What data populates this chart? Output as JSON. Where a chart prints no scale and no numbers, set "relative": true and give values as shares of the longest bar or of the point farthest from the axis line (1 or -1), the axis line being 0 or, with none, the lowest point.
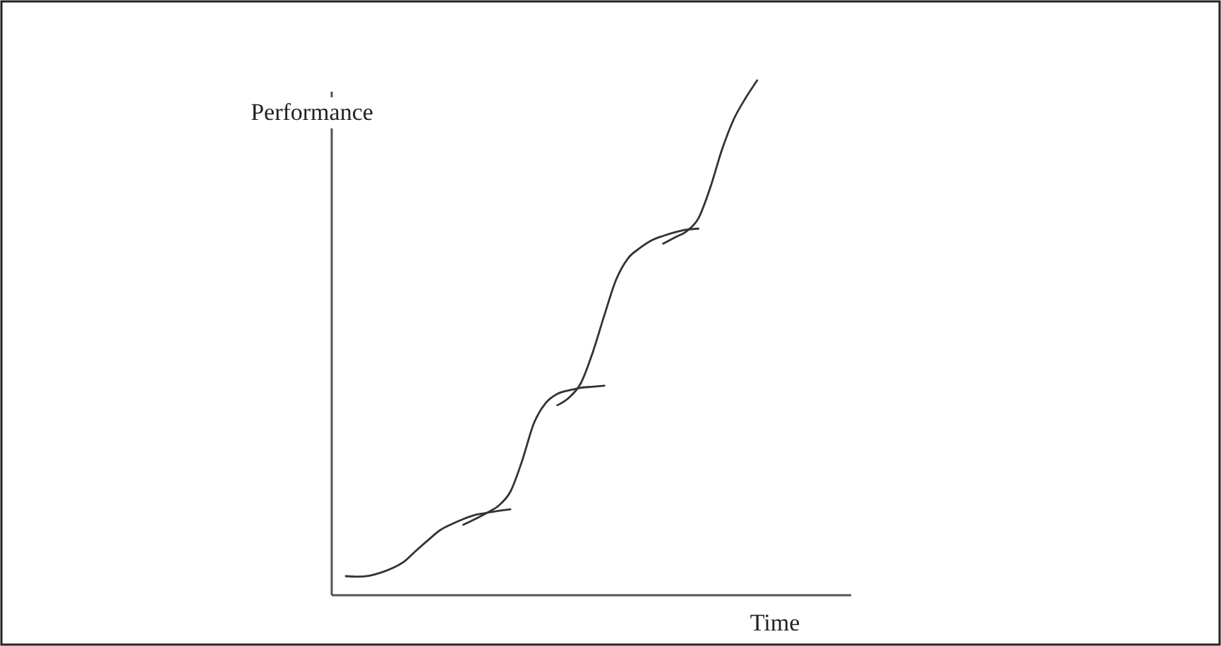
{
  "chart_data": {
    "type": "line",
    "relative": true,
    "xlabel": "Time",
    "ylabel": "Performance",
    "categories": [
      null,
      null,
      null,
      null,
      null,
      null,
      null,
      null,
      null,
      null,
      null,
      null,
      null,
      null,
      null,
      null,
      null,
      null,
      null,
      null,
      null,
      null,
      null,
      null,
      null,
      null,
      null,
      null,
      null,
      null,
      null,
      null,
      null,
      null,
      null,
      null,
      null,
      null,
      null,
      null,
      null,
      null,
      null,
      null
    ],
    "series": [
      {
        "color": "#333333",
        "values": [
          0.037,
          0.036,
          0.038,
          0.044,
          0.053,
          0.066,
          0.087,
          0.107,
          0.126,
          0.138,
          0.148,
          0.156,
          0.16,
          0.164,
          0.167,
          null,
          null,
          null,
          null,
          null,
          null,
          null,
          null,
          null,
          null,
          null,
          null,
          null,
          null,
          null,
          null,
          null,
          null,
          null,
          null,
          null,
          null,
          null,
          null,
          null,
          null,
          null,
          null,
          null
        ]
      },
      {
        "color": "#333333",
        "values": [
          null,
          null,
          null,
          null,
          null,
          null,
          null,
          null,
          null,
          null,
          0.137,
          0.148,
          0.16,
          0.174,
          0.201,
          0.261,
          0.334,
          0.373,
          0.391,
          0.398,
          0.403,
          0.405,
          0.407,
          null,
          null,
          null,
          null,
          null,
          null,
          null,
          null,
          null,
          null,
          null,
          null,
          null,
          null,
          null,
          null,
          null,
          null,
          null,
          null,
          null
        ]
      },
      {
        "color": "#333333",
        "values": [
          null,
          null,
          null,
          null,
          null,
          null,
          null,
          null,
          null,
          null,
          null,
          null,
          null,
          null,
          null,
          null,
          null,
          null,
          0.369,
          0.384,
          0.412,
          0.471,
          0.544,
          0.613,
          0.654,
          0.674,
          0.689,
          0.698,
          0.705,
          0.71,
          0.712,
          null,
          null,
          null,
          null,
          null,
          null,
          null,
          null,
          null,
          null,
          null,
          null,
          null
        ]
      },
      {
        "color": "#333333",
        "values": [
          null,
          null,
          null,
          null,
          null,
          null,
          null,
          null,
          null,
          null,
          null,
          null,
          null,
          null,
          null,
          null,
          null,
          null,
          null,
          null,
          null,
          null,
          null,
          null,
          null,
          null,
          null,
          0.683,
          0.695,
          0.707,
          0.732,
          0.791,
          0.865,
          0.924,
          0.965,
          1,
          null,
          null,
          null,
          null,
          null,
          null,
          null,
          null
        ]
      }
    ]
  }
}
